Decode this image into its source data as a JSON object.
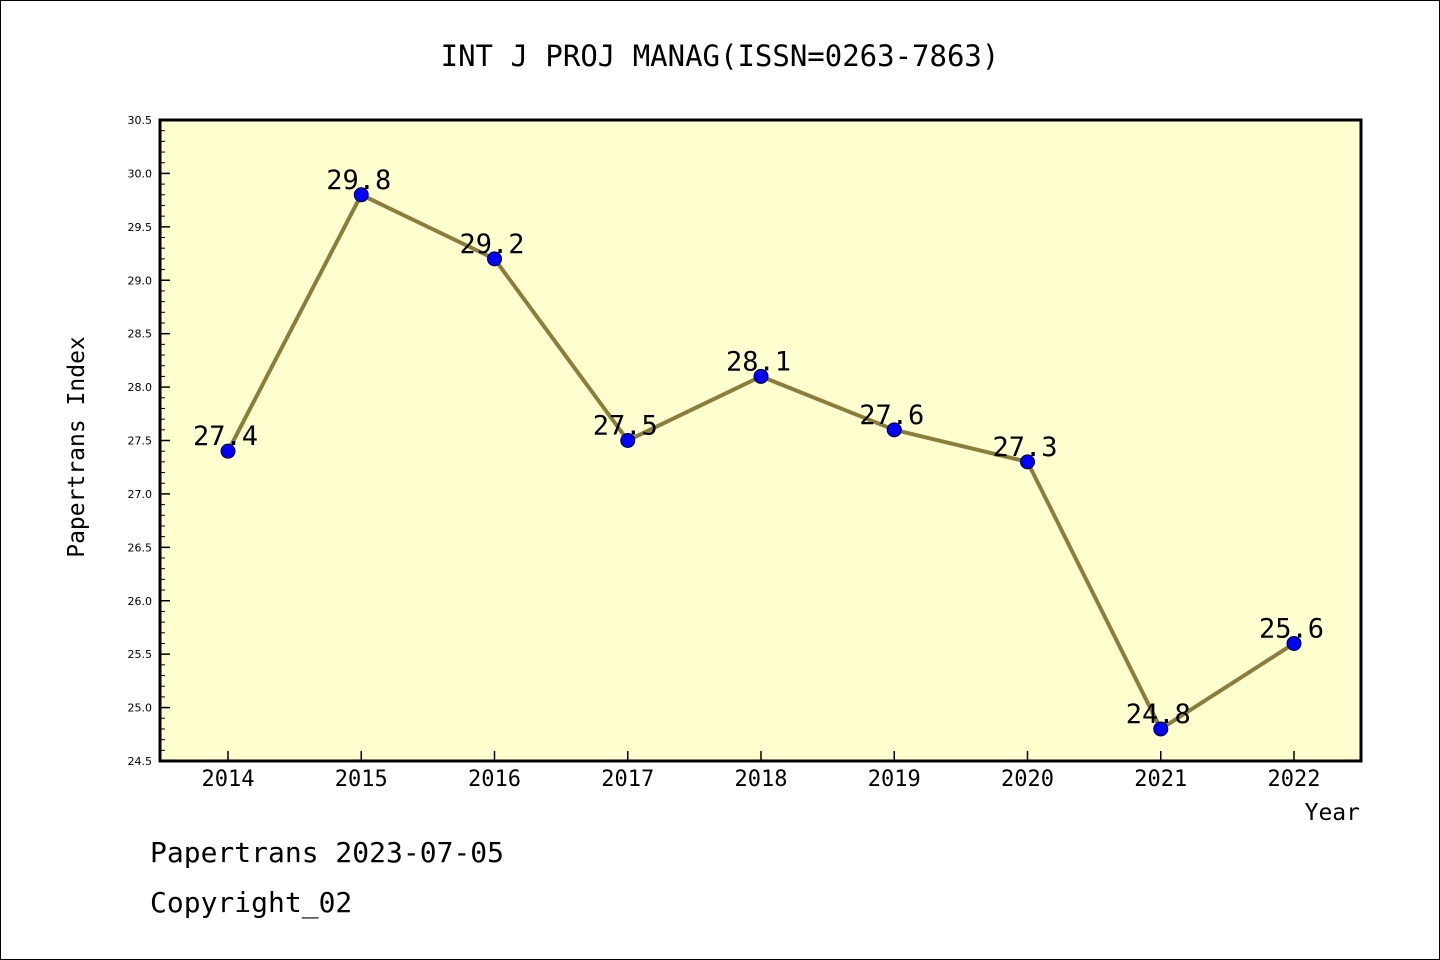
{
  "chart_data": {
    "type": "line",
    "title": "INT J PROJ MANAG(ISSN=0263-7863)",
    "xlabel": "Year",
    "ylabel": "Papertrans Index",
    "categories": [
      "2014",
      "2015",
      "2016",
      "2017",
      "2018",
      "2019",
      "2020",
      "2021",
      "2022"
    ],
    "values": [
      27.4,
      29.8,
      29.2,
      27.5,
      28.1,
      27.6,
      27.3,
      24.8,
      25.6
    ],
    "data_labels": [
      "27.4",
      "29.8",
      "29.2",
      "27.5",
      "28.1",
      "27.6",
      "27.3",
      "24.8",
      "25.6"
    ],
    "ylim": [
      24.5,
      30.5
    ],
    "yticks": [
      "24.5",
      "25.0",
      "25.5",
      "26.0",
      "26.5",
      "27.0",
      "27.5",
      "28.0",
      "28.5",
      "29.0",
      "29.5",
      "30.0",
      "30.5"
    ],
    "grid": false,
    "colors": {
      "plot_background": "#ffffd0",
      "line": "#8b7d3a",
      "marker": "#0000ff"
    }
  },
  "footer": {
    "line1": "Papertrans 2023-07-05",
    "line2": "Copyright_02"
  }
}
